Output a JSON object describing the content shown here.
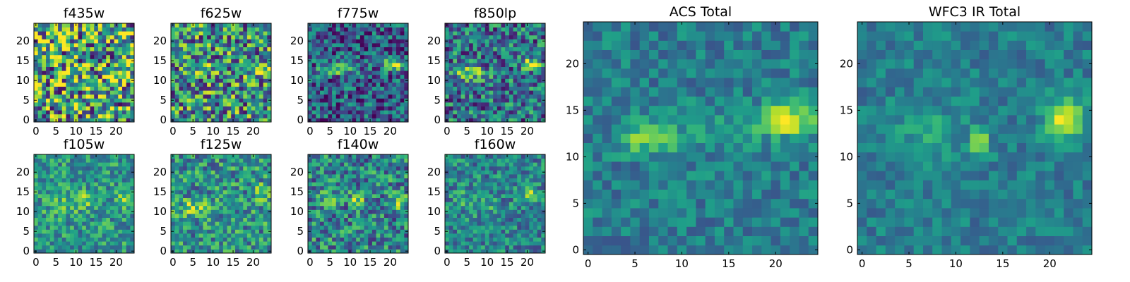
{
  "figure": {
    "panels": [
      {
        "title": "f435w"
      },
      {
        "title": "f625w"
      },
      {
        "title": "f775w"
      },
      {
        "title": "f850lp"
      },
      {
        "title": "f105w"
      },
      {
        "title": "f125w"
      },
      {
        "title": "f140w"
      },
      {
        "title": "f160w"
      },
      {
        "title": "ACS Total"
      },
      {
        "title": "WFC3 IR Total"
      }
    ]
  },
  "chart_data": [
    {
      "type": "heatmap",
      "title": "f435w",
      "colormap": "viridis",
      "xlim": [
        0,
        24
      ],
      "ylim": [
        0,
        24
      ],
      "xticks": [
        0,
        5,
        10,
        15,
        20
      ],
      "yticks": [
        0,
        5,
        10,
        15,
        20
      ],
      "features": "mostly noise, no clear source"
    },
    {
      "type": "heatmap",
      "title": "f625w",
      "colormap": "viridis",
      "xlim": [
        0,
        24
      ],
      "ylim": [
        0,
        24
      ],
      "xticks": [
        0,
        5,
        10,
        15,
        20
      ],
      "yticks": [
        0,
        5,
        10,
        15,
        20
      ],
      "features": "faint bright band near y=13 around x=5-9 and x=21-24"
    },
    {
      "type": "heatmap",
      "title": "f775w",
      "colormap": "viridis",
      "xlim": [
        0,
        24
      ],
      "ylim": [
        0,
        24
      ],
      "xticks": [
        0,
        5,
        10,
        15,
        20
      ],
      "yticks": [
        0,
        5,
        10,
        15,
        20
      ],
      "features": "bright sources at x~4-10, y~12-14 and x~19-24, y~13-15"
    },
    {
      "type": "heatmap",
      "title": "f850lp",
      "colormap": "viridis",
      "xlim": [
        0,
        24
      ],
      "ylim": [
        0,
        24
      ],
      "xticks": [
        0,
        5,
        10,
        15,
        20
      ],
      "yticks": [
        0,
        5,
        10,
        15,
        20
      ],
      "features": "bright sources at x~4-10, y~11-13 and x~19-24, y~13-15"
    },
    {
      "type": "heatmap",
      "title": "f105w",
      "colormap": "viridis",
      "xlim": [
        0,
        24
      ],
      "ylim": [
        0,
        24
      ],
      "xticks": [
        0,
        5,
        10,
        15,
        20
      ],
      "yticks": [
        0,
        5,
        10,
        15,
        20
      ],
      "features": "bright spots near x~12, y~13 and x~21-23, y~12-15"
    },
    {
      "type": "heatmap",
      "title": "f125w",
      "colormap": "viridis",
      "xlim": [
        0,
        24
      ],
      "ylim": [
        0,
        24
      ],
      "xticks": [
        0,
        5,
        10,
        15,
        20
      ],
      "yticks": [
        0,
        5,
        10,
        15,
        20
      ],
      "features": "bright regions near x~2-12, y~10-12 and x~20-23, y~14-16"
    },
    {
      "type": "heatmap",
      "title": "f140w",
      "colormap": "viridis",
      "xlim": [
        0,
        24
      ],
      "ylim": [
        0,
        24
      ],
      "xticks": [
        0,
        5,
        10,
        15,
        20
      ],
      "yticks": [
        0,
        5,
        10,
        15,
        20
      ],
      "features": "several bright spots near y~12-14 at x~5, 12, 22"
    },
    {
      "type": "heatmap",
      "title": "f160w",
      "colormap": "viridis",
      "xlim": [
        0,
        24
      ],
      "ylim": [
        0,
        24
      ],
      "xticks": [
        0,
        5,
        10,
        15,
        20
      ],
      "yticks": [
        0,
        5,
        10,
        15,
        20
      ],
      "features": "bright source at x~20-23, y~13-15 and spot near x~12, y~11"
    },
    {
      "type": "heatmap",
      "title": "ACS Total",
      "colormap": "viridis",
      "xlim": [
        0,
        24
      ],
      "ylim": [
        0,
        24
      ],
      "xticks": [
        0,
        5,
        10,
        15,
        20
      ],
      "yticks": [
        0,
        5,
        10,
        15,
        20
      ],
      "features": "bright source at x~4-9, y~11-13; brightest source at x~18-23, y~13-15"
    },
    {
      "type": "heatmap",
      "title": "WFC3 IR Total",
      "colormap": "viridis",
      "xlim": [
        0,
        24
      ],
      "ylim": [
        0,
        24
      ],
      "xticks": [
        0,
        5,
        10,
        15,
        20
      ],
      "yticks": [
        0,
        5,
        10,
        15,
        20
      ],
      "features": "brightest source at x~20-23, y~12-15; secondary bright spot at x~12-13, y~10-12"
    }
  ]
}
